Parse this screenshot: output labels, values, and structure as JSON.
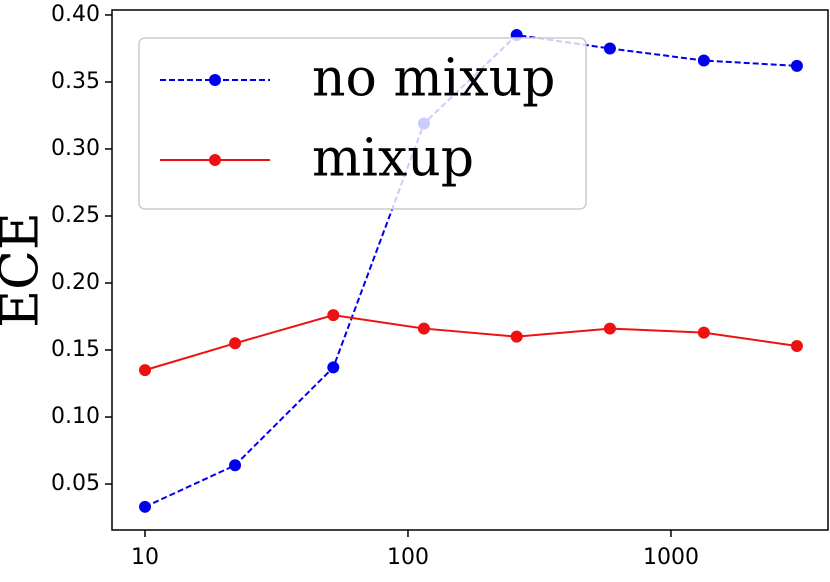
{
  "chart_data": {
    "type": "line",
    "y_label": "ECE",
    "x_scale": "log",
    "x": [
      10,
      22,
      52,
      115,
      259,
      586,
      1334,
      3013
    ],
    "series": [
      {
        "name": "no mixup",
        "color": "#0000ee",
        "dash": true,
        "values": [
          0.033,
          0.064,
          0.137,
          0.319,
          0.385,
          0.375,
          0.366,
          0.362
        ]
      },
      {
        "name": "mixup",
        "color": "#ee1111",
        "dash": false,
        "values": [
          0.135,
          0.155,
          0.176,
          0.166,
          0.16,
          0.166,
          0.163,
          0.153
        ]
      }
    ],
    "xlim": [
      7.49,
      3955
    ],
    "xticks": [
      10,
      100,
      1000
    ],
    "ylim": [
      0.0157,
      0.4037
    ],
    "yticks": [
      0.05,
      {
        "value": 0.1,
        "label": "0.10"
      },
      0.15,
      {
        "value": 0.2,
        "label": "0.20"
      },
      0.25,
      {
        "value": 0.3,
        "label": "0.30"
      },
      0.35,
      {
        "value": 0.4,
        "label": "0.40"
      }
    ],
    "legend": "upper left"
  }
}
